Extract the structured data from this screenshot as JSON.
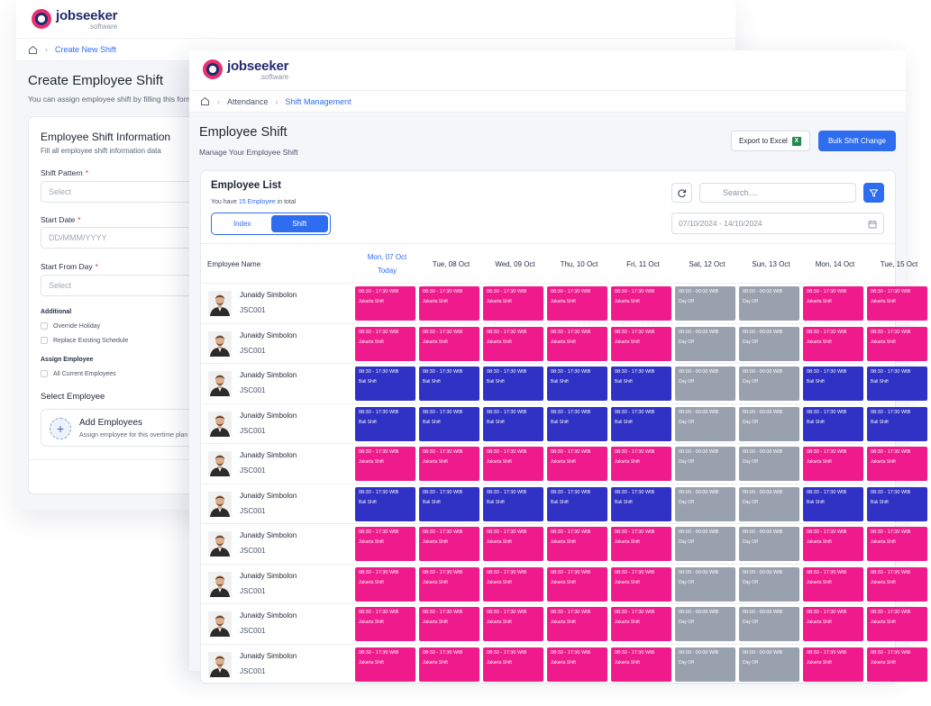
{
  "colors": {
    "jakarta": "#ef1b8c",
    "bali": "#2f32c4",
    "off": "#9aa1ae",
    "accent": "#2f6df0"
  },
  "brand": {
    "name": "jobseeker",
    "sub": ".software"
  },
  "back": {
    "breadcrumb": [
      "Create New Shift"
    ],
    "title": "Create Employee Shift",
    "subtitle": "You can assign employee shift by filling this form",
    "card_title": "Employee Shift Information",
    "card_subtitle": "Fill all employee shift information data",
    "shift_pattern_label": "Shift Pattern",
    "shift_pattern_placeholder": "Select",
    "start_date_label": "Start Date",
    "start_date_placeholder": "DD/MMM/YYYY",
    "start_from_day_label": "Start From Day",
    "start_from_day_placeholder": "Select",
    "required_mark": "*",
    "additional_label": "Additional",
    "override_holiday": "Override Holiday",
    "replace_schedule": "Replace Existing Schedule",
    "assign_label": "Assign Employee",
    "all_current": "All Current Employees",
    "select_employee": "Select Employee",
    "add_title": "Add Employees",
    "add_sub": "Assign employee for this overtime plan",
    "plus": "+"
  },
  "front": {
    "breadcrumb": [
      "Attendance",
      "Shift Management"
    ],
    "title": "Employee Shift",
    "subtitle": "Manage Your Employee Shift",
    "export_label": "Export to Excel",
    "excel_icon": "X",
    "bulk_label": "Bulk Shift Change",
    "list_title": "Employee List",
    "count_prefix": "You have ",
    "count_value": "15 Employee",
    "count_suffix": " in total",
    "tab_index": "Index",
    "tab_shift": "Shift",
    "search_placeholder": "Search....",
    "date_range": "07/10/2024 - 14/10/2024",
    "col_name": "Employee Name",
    "today_label": "Today",
    "days": [
      "Mon, 07 Oct",
      "Tue, 08 Oct",
      "Wed, 09 Oct",
      "Thu, 10 Oct",
      "Fri, 11 Oct",
      "Sat, 12 Oct",
      "Sun, 13 Oct",
      "Mon, 14 Oct",
      "Tue, 15 Oct"
    ]
  },
  "shift_types": {
    "J": {
      "time": "08:30 - 17:30 WIB",
      "name": "Jakarta Shift"
    },
    "B": {
      "time": "08:30 - 17:30 WIB",
      "name": "Bali Shift"
    },
    "O": {
      "time": "00:00 - 00:00 WIB",
      "name": "Day Off"
    }
  },
  "rows": [
    {
      "name": "Junaidy Simbolon",
      "code": "JSC001",
      "shifts": [
        "J",
        "J",
        "J",
        "J",
        "J",
        "O",
        "O",
        "J",
        "J"
      ]
    },
    {
      "name": "Junaidy Simbolon",
      "code": "JSC001",
      "shifts": [
        "J",
        "J",
        "J",
        "J",
        "J",
        "O",
        "O",
        "J",
        "J"
      ]
    },
    {
      "name": "Junaidy Simbolon",
      "code": "JSC001",
      "shifts": [
        "B",
        "B",
        "B",
        "B",
        "B",
        "O",
        "O",
        "B",
        "B"
      ]
    },
    {
      "name": "Junaidy Simbolon",
      "code": "JSC001",
      "shifts": [
        "B",
        "B",
        "B",
        "B",
        "B",
        "O",
        "O",
        "B",
        "B"
      ]
    },
    {
      "name": "Junaidy Simbolon",
      "code": "JSC001",
      "shifts": [
        "J",
        "J",
        "J",
        "J",
        "J",
        "O",
        "O",
        "J",
        "J"
      ]
    },
    {
      "name": "Junaidy Simbolon",
      "code": "JSC001",
      "shifts": [
        "B",
        "B",
        "B",
        "B",
        "B",
        "O",
        "O",
        "B",
        "B"
      ]
    },
    {
      "name": "Junaidy Simbolon",
      "code": "JSC001",
      "shifts": [
        "J",
        "J",
        "J",
        "J",
        "J",
        "O",
        "O",
        "J",
        "J"
      ]
    },
    {
      "name": "Junaidy Simbolon",
      "code": "JSC001",
      "shifts": [
        "J",
        "J",
        "J",
        "J",
        "J",
        "O",
        "O",
        "J",
        "J"
      ]
    },
    {
      "name": "Junaidy Simbolon",
      "code": "JSC001",
      "shifts": [
        "J",
        "J",
        "J",
        "J",
        "J",
        "O",
        "O",
        "J",
        "J"
      ]
    },
    {
      "name": "Junaidy Simbolon",
      "code": "JSC001",
      "shifts": [
        "J",
        "J",
        "J",
        "J",
        "J",
        "O",
        "O",
        "J",
        "J"
      ]
    }
  ]
}
